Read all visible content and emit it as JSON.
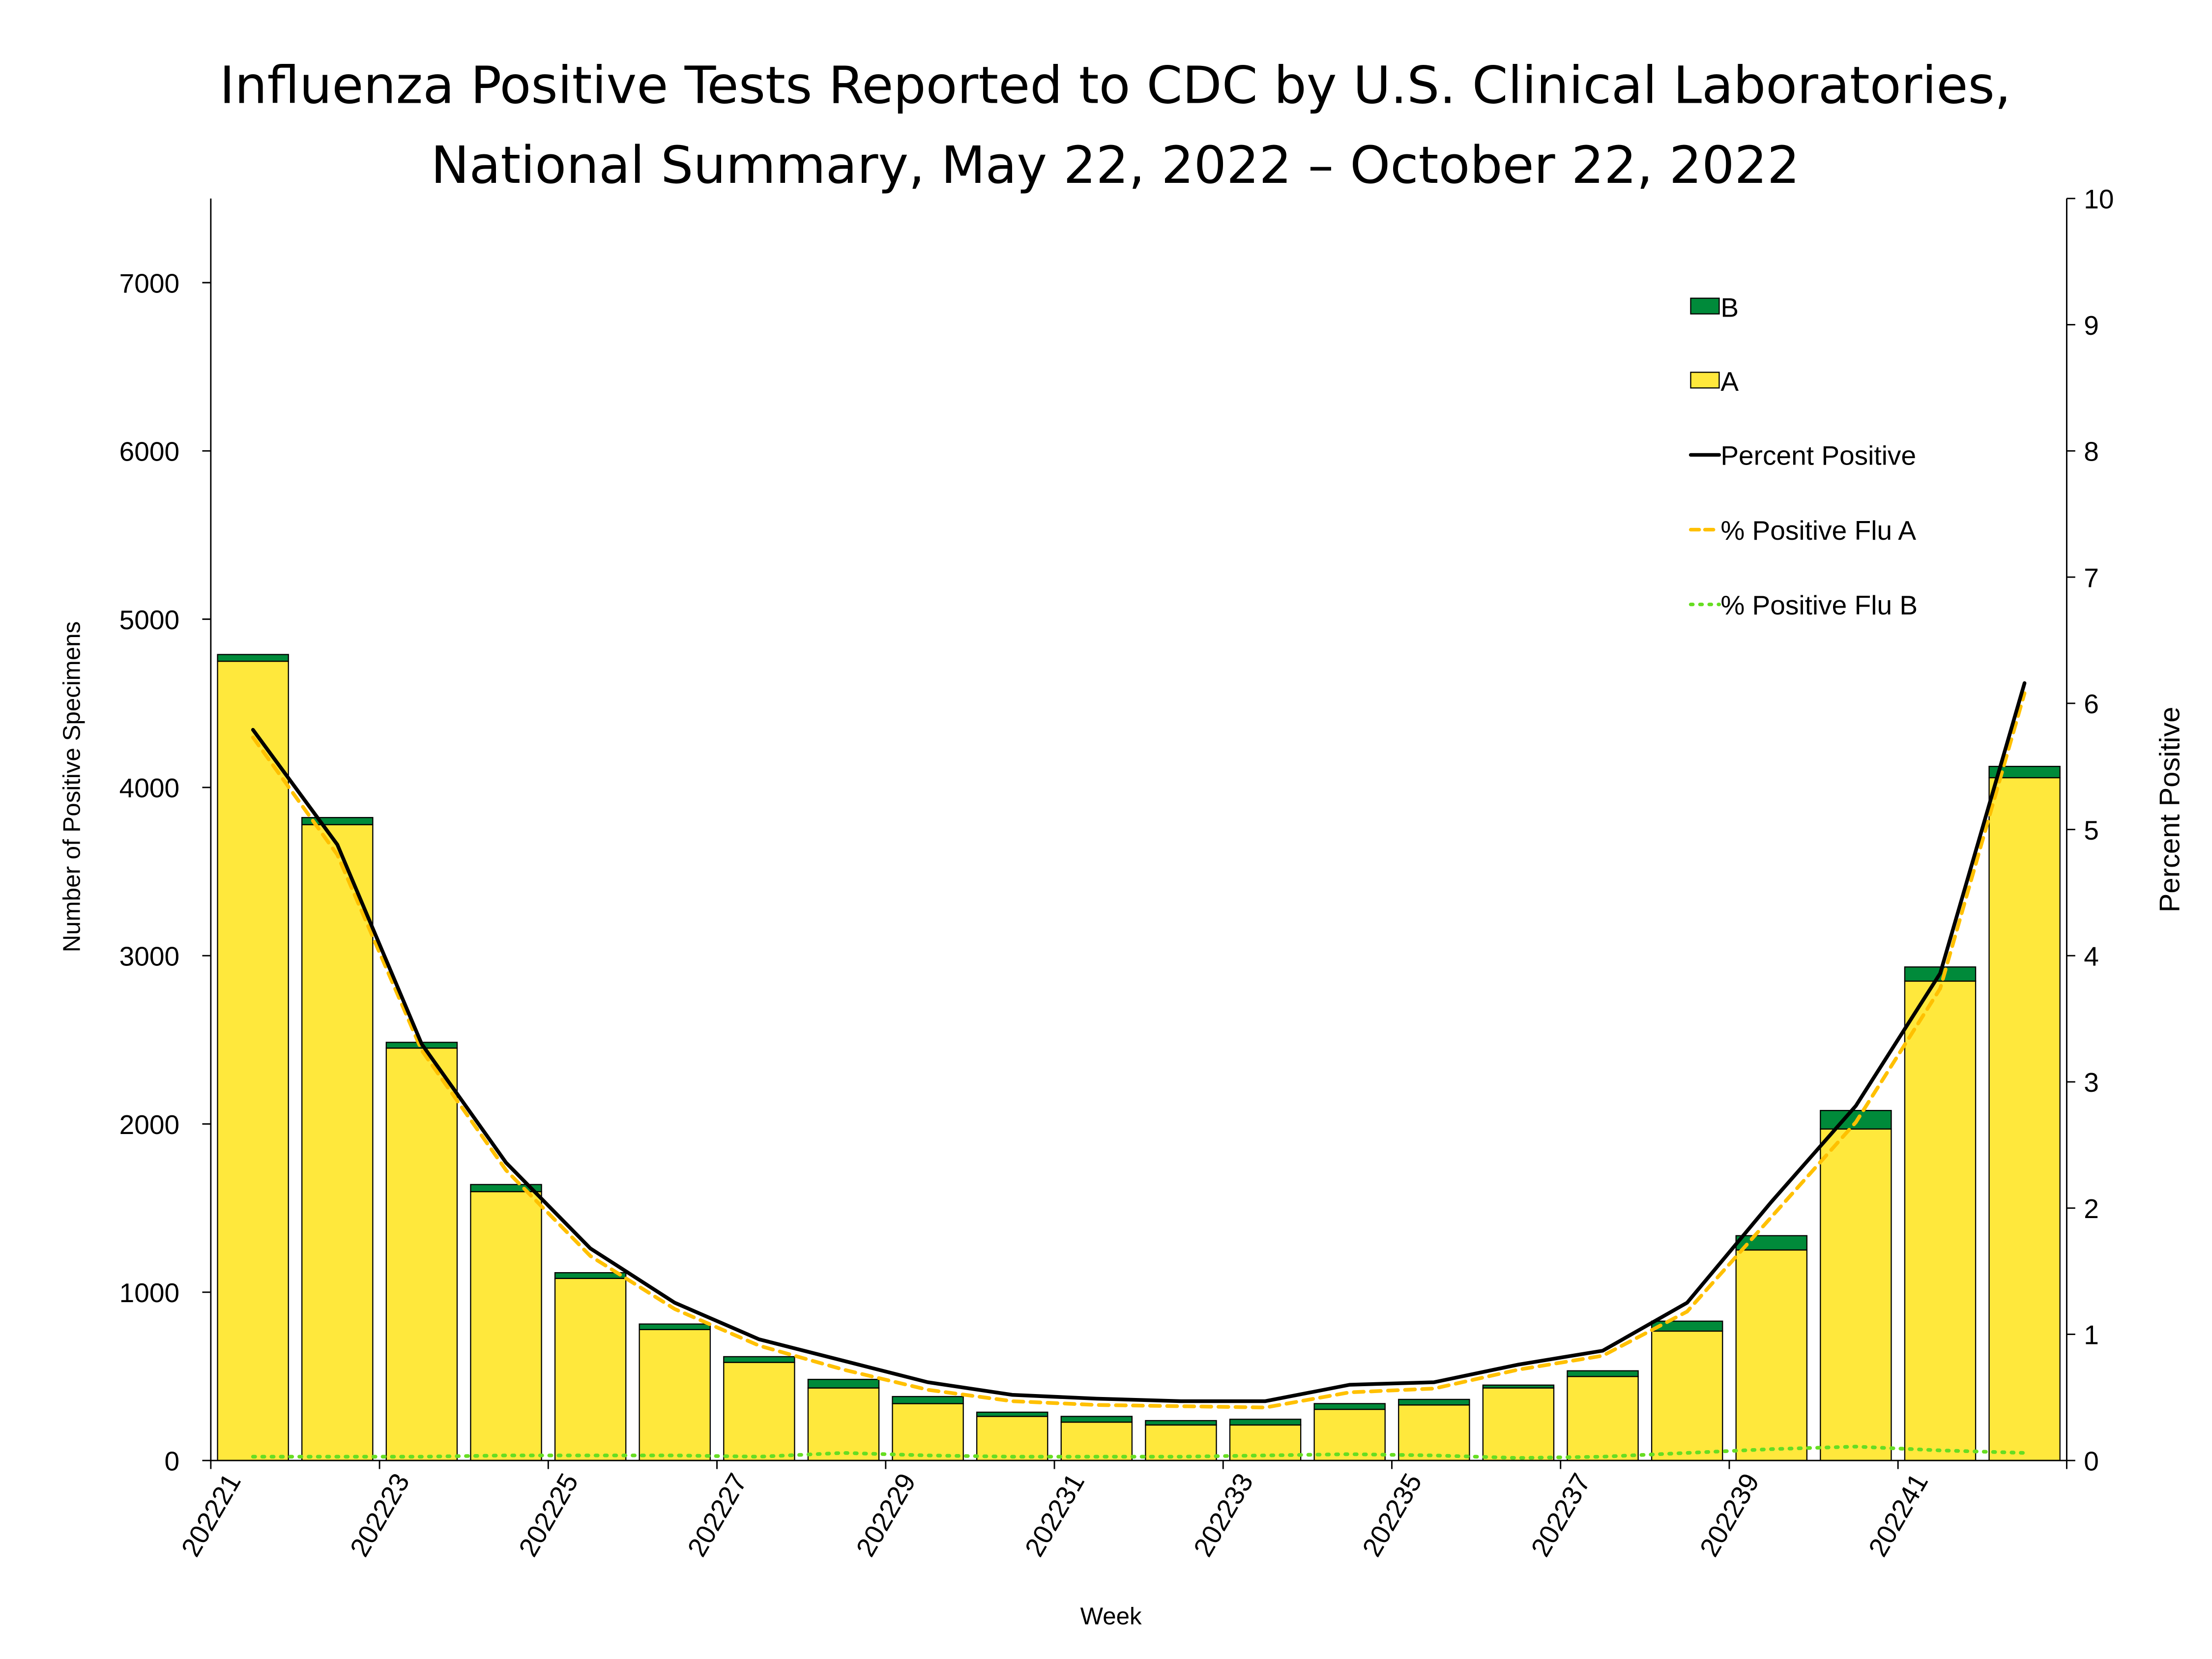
{
  "chart_data": {
    "type": "bar",
    "title_lines": [
      "Influenza Positive Tests Reported to CDC by U.S. Clinical Laboratories,",
      "National Summary, May 22, 2022 – October 22, 2022"
    ],
    "xlabel": "Week",
    "ylabel": "Number of Positive Specimens",
    "y2label": "Percent Positive",
    "ylim": [
      0,
      7500
    ],
    "y2lim": [
      0,
      10
    ],
    "yticks": [
      0,
      1000,
      2000,
      3000,
      4000,
      5000,
      6000,
      7000
    ],
    "y2ticks": [
      0,
      1,
      2,
      3,
      4,
      5,
      6,
      7,
      8,
      9,
      10
    ],
    "grid": false,
    "legend_position": "top-right",
    "categories": [
      "202221",
      "202222",
      "202223",
      "202224",
      "202225",
      "202226",
      "202227",
      "202228",
      "202229",
      "202230",
      "202231",
      "202232",
      "202233",
      "202234",
      "202235",
      "202236",
      "202237",
      "202238",
      "202239",
      "202240",
      "202241",
      "202242"
    ],
    "xtick_labels": [
      "202221",
      "202223",
      "202225",
      "202227",
      "202229",
      "202231",
      "202233",
      "202235",
      "202237",
      "202239",
      "202241"
    ],
    "stacked_series": [
      {
        "name": "A",
        "color": "#FFE83C",
        "values": [
          4750,
          3779,
          2451,
          1598,
          1082,
          778,
          583,
          431,
          338,
          262,
          228,
          211,
          211,
          304,
          330,
          431,
          499,
          769,
          1251,
          1970,
          2849,
          4058
        ]
      },
      {
        "name": "B",
        "color": "#008A3A",
        "values": [
          40,
          42,
          34,
          42,
          34,
          33,
          34,
          51,
          42,
          25,
          34,
          26,
          34,
          34,
          33,
          17,
          34,
          59,
          85,
          110,
          84,
          67
        ]
      }
    ],
    "line_series": [
      {
        "name": "Percent Positive",
        "color": "#000000",
        "style": "solid",
        "values": [
          5.79,
          4.88,
          3.3,
          2.36,
          1.68,
          1.25,
          0.96,
          0.79,
          0.62,
          0.52,
          0.49,
          0.47,
          0.47,
          0.6,
          0.62,
          0.76,
          0.87,
          1.25,
          2.05,
          2.81,
          3.86,
          6.16
        ]
      },
      {
        "name": "% Positive Flu A",
        "color": "#FFC000",
        "style": "dashed",
        "values": [
          5.73,
          4.8,
          3.25,
          2.3,
          1.62,
          1.2,
          0.91,
          0.72,
          0.56,
          0.47,
          0.44,
          0.43,
          0.42,
          0.54,
          0.57,
          0.72,
          0.83,
          1.18,
          1.93,
          2.68,
          3.74,
          6.08
        ]
      },
      {
        "name": "% Positive Flu B",
        "color": "#66DD22",
        "style": "dotted",
        "values": [
          0.03,
          0.03,
          0.03,
          0.04,
          0.04,
          0.04,
          0.03,
          0.06,
          0.04,
          0.03,
          0.03,
          0.03,
          0.04,
          0.05,
          0.04,
          0.02,
          0.03,
          0.06,
          0.09,
          0.11,
          0.08,
          0.06
        ]
      }
    ]
  }
}
